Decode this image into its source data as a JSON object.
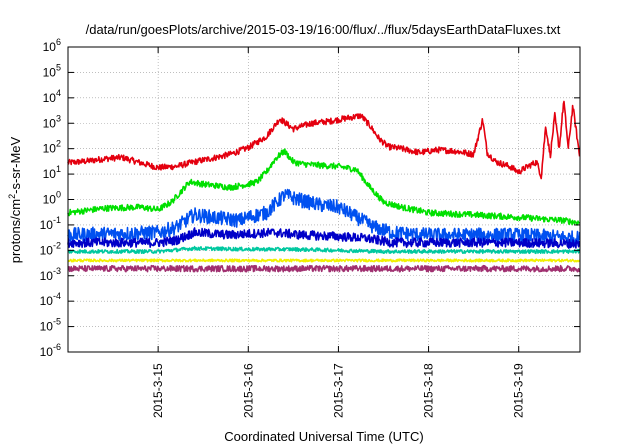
{
  "chart_data": {
    "type": "line",
    "title": "/data/run/goesPlots/archive/2015-03-19/16:00/flux/../flux/5daysEarthDataFluxes.txt",
    "xlabel": "Coordinated Universal Time (UTC)",
    "ylabel_parts": {
      "pre": "protons/cm",
      "sup": "2",
      "post": "-s-sr-MeV"
    },
    "y_scale": "log",
    "ylim_exp": [
      -6,
      6
    ],
    "yticks_exp": [
      -6,
      -5,
      -4,
      -3,
      -2,
      -1,
      0,
      1,
      2,
      3,
      4,
      5,
      6
    ],
    "ytick_base": "10",
    "xlim_days": [
      14.0,
      19.68
    ],
    "xticks": [
      {
        "day": 15,
        "label": "2015-3-15"
      },
      {
        "day": 16,
        "label": "2015-3-16"
      },
      {
        "day": 17,
        "label": "2015-3-17"
      },
      {
        "day": 18,
        "label": "2015-3-18"
      },
      {
        "day": 19,
        "label": "2015-3-19"
      }
    ],
    "grid": true,
    "series": [
      {
        "color": "#e4000f",
        "x": [
          14.0,
          14.2,
          14.4,
          14.6,
          14.8,
          15.0,
          15.2,
          15.4,
          15.6,
          15.8,
          16.0,
          16.2,
          16.35,
          16.5,
          16.7,
          16.9,
          17.1,
          17.25,
          17.35,
          17.45,
          17.55,
          17.7,
          17.9,
          18.1,
          18.3,
          18.5,
          18.6,
          18.65,
          18.75,
          18.9,
          19.0,
          19.1,
          19.2,
          19.25,
          19.3,
          19.35,
          19.4,
          19.45,
          19.5,
          19.55,
          19.6,
          19.68
        ],
        "y": [
          28,
          32,
          40,
          45,
          28,
          18,
          20,
          30,
          42,
          60,
          110,
          300,
          1500,
          600,
          1000,
          1200,
          1600,
          2000,
          800,
          250,
          120,
          100,
          70,
          90,
          80,
          60,
          1400,
          70,
          30,
          20,
          12,
          20,
          30,
          8,
          800,
          50,
          2000,
          100,
          8000,
          100,
          5000,
          40
        ],
        "noise": 0.12
      },
      {
        "color": "#00e000",
        "x": [
          14.0,
          14.4,
          14.8,
          15.0,
          15.15,
          15.25,
          15.35,
          15.5,
          15.8,
          16.0,
          16.1,
          16.2,
          16.3,
          16.4,
          16.5,
          16.6,
          16.8,
          17.0,
          17.2,
          17.35,
          17.5,
          17.7,
          18.0,
          18.5,
          19.0,
          19.5,
          19.68
        ],
        "y": [
          0.3,
          0.45,
          0.5,
          0.4,
          0.8,
          2.0,
          5.0,
          4.0,
          3.0,
          4.0,
          5.0,
          12,
          40,
          80,
          30,
          25,
          22,
          20,
          15,
          3.0,
          0.8,
          0.5,
          0.3,
          0.25,
          0.2,
          0.15,
          0.12
        ],
        "noise": 0.12
      },
      {
        "color": "#0050f0",
        "x": [
          14.0,
          14.5,
          15.0,
          15.2,
          15.4,
          15.6,
          15.9,
          16.0,
          16.2,
          16.4,
          16.6,
          16.8,
          17.0,
          17.2,
          17.4,
          17.6,
          18.0,
          18.5,
          19.0,
          19.68
        ],
        "y": [
          0.04,
          0.045,
          0.05,
          0.08,
          0.25,
          0.2,
          0.15,
          0.2,
          0.3,
          1.5,
          0.9,
          0.6,
          0.5,
          0.2,
          0.08,
          0.05,
          0.04,
          0.04,
          0.04,
          0.03
        ],
        "noise": 0.28
      },
      {
        "color": "#0000c8",
        "x": [
          14.0,
          15.0,
          15.2,
          15.4,
          15.8,
          16.0,
          16.3,
          16.6,
          17.0,
          17.3,
          17.6,
          18.0,
          19.0,
          19.68
        ],
        "y": [
          0.02,
          0.02,
          0.025,
          0.05,
          0.04,
          0.045,
          0.05,
          0.04,
          0.035,
          0.03,
          0.02,
          0.02,
          0.02,
          0.018
        ],
        "noise": 0.18
      },
      {
        "color": "#00c8a0",
        "x": [
          14.0,
          15.0,
          15.4,
          16.0,
          16.5,
          17.0,
          17.5,
          18.0,
          19.0,
          19.68
        ],
        "y": [
          0.009,
          0.009,
          0.012,
          0.011,
          0.011,
          0.01,
          0.009,
          0.009,
          0.009,
          0.009
        ],
        "noise": 0.07
      },
      {
        "color": "#f0f000",
        "x": [
          14.0,
          19.68
        ],
        "y": [
          0.004,
          0.004
        ],
        "noise": 0.05
      },
      {
        "color": "#a03070",
        "x": [
          14.0,
          19.68
        ],
        "y": [
          0.0019,
          0.0019
        ],
        "noise": 0.12
      }
    ]
  }
}
